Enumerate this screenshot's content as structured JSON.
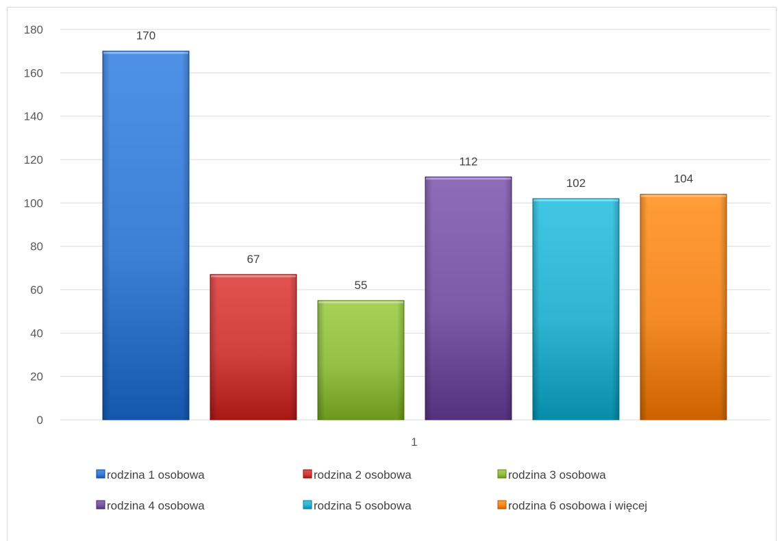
{
  "chart_data": {
    "type": "bar",
    "categories": [
      "1"
    ],
    "series": [
      {
        "name": "rodzina 1 osobowa",
        "values": [
          170
        ],
        "color": "#3d7fd4"
      },
      {
        "name": "rodzina 2 osobowa",
        "values": [
          67
        ],
        "color": "#d0403d"
      },
      {
        "name": "rodzina 3 osobowa",
        "values": [
          55
        ],
        "color": "#93c045"
      },
      {
        "name": "rodzina 4 osobowa",
        "values": [
          112
        ],
        "color": "#7d5aa8"
      },
      {
        "name": "rodzina 5 osobowa",
        "values": [
          102
        ],
        "color": "#2fb5d2"
      },
      {
        "name": "rodzina 6 osobowa i więcej",
        "values": [
          104
        ],
        "color": "#f58b25"
      }
    ],
    "y_ticks": [
      "0",
      "20",
      "40",
      "60",
      "80",
      "100",
      "120",
      "140",
      "160",
      "180"
    ],
    "ylim": [
      0,
      180
    ],
    "grid": true,
    "legend_position": "bottom",
    "data_labels": true,
    "title": "",
    "xlabel": "",
    "ylabel": ""
  }
}
